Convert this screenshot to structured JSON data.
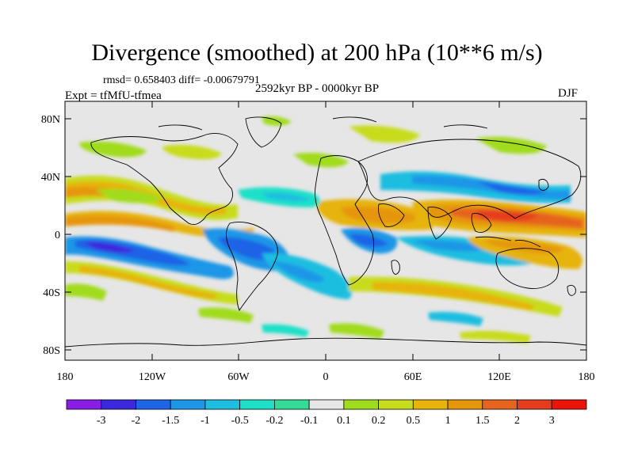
{
  "title": "Divergence (smoothed) at 200 hPa (10**6 m/s)",
  "stats": "rmsd= 0.658403 diff= -0.00679791",
  "period": "2592kyr BP - 0000kyr BP",
  "experiment": "Expt = tfMfU-tfmea",
  "season": "DJF",
  "axes": {
    "y_ticks": [
      "80N",
      "40N",
      "0",
      "40S",
      "80S"
    ],
    "x_ticks": [
      "180",
      "120W",
      "60W",
      "0",
      "60E",
      "120E",
      "180"
    ]
  },
  "colorbar": {
    "labels": [
      "-3",
      "-2",
      "-1.5",
      "-1",
      "-0.5",
      "-0.2",
      "-0.1",
      "0.1",
      "0.2",
      "0.5",
      "1",
      "1.5",
      "2",
      "3"
    ],
    "colors": [
      "#8a1ee6",
      "#3c28dc",
      "#1e64e6",
      "#1e96e6",
      "#1ebee0",
      "#1ee0c8",
      "#32dc96",
      "#e6e6e6",
      "#a0dc1e",
      "#c8dc1e",
      "#e6b40a",
      "#e6960a",
      "#e6641e",
      "#e63c1e",
      "#ec140a"
    ]
  },
  "palette": {
    "land_bg": "#e6e6e6",
    "coast": "#000000"
  }
}
